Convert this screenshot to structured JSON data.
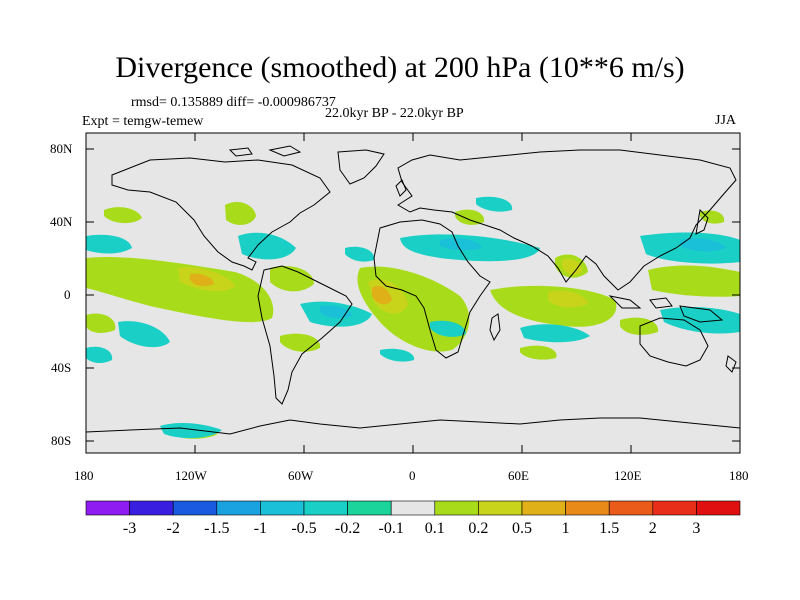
{
  "header": {
    "title": "Divergence (smoothed) at 200 hPa (10**6 m/s)",
    "stats": "rmsd= 0.135889  diff= -0.000986737",
    "experiment": "Expt = temgw-temew",
    "period": "22.0kyr BP - 22.0kyr BP",
    "season": "JJA"
  },
  "axes": {
    "lat_labels": [
      "80N",
      "40N",
      "0",
      "40S",
      "80S"
    ],
    "lon_labels": [
      "180",
      "120W",
      "60W",
      "0",
      "60E",
      "120E",
      "180"
    ]
  },
  "legend": {
    "labels": [
      "-3",
      "-2",
      "-1.5",
      "-1",
      "-0.5",
      "-0.2",
      "-0.1",
      "0.1",
      "0.2",
      "0.5",
      "1",
      "1.5",
      "2",
      "3"
    ],
    "colors": [
      "#8f1cf0",
      "#3a1ee0",
      "#1a5ae0",
      "#1aa2e0",
      "#1ac0d8",
      "#1ad0c6",
      "#1ad49c",
      "#e6e6e6",
      "#a8dc1a",
      "#c8d41a",
      "#e0b018",
      "#e88a18",
      "#ea5a18",
      "#e82e18",
      "#e01010"
    ]
  },
  "colors": {
    "background": "#e6e6e6",
    "coastline": "#000000"
  }
}
